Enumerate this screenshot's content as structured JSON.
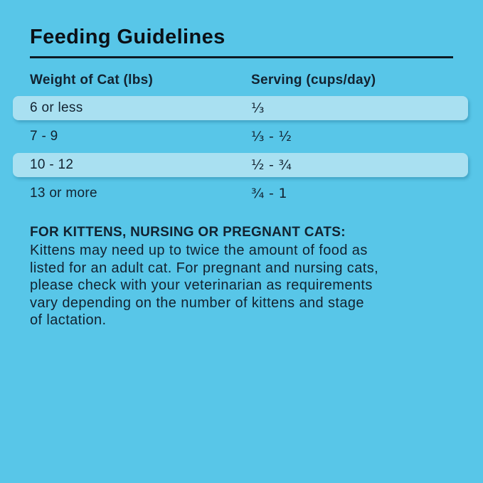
{
  "header": {
    "title": "Feeding Guidelines"
  },
  "table": {
    "headers": [
      "Weight of Cat (lbs)",
      "Serving (cups/day)"
    ],
    "rows": [
      {
        "weight": "6 or less",
        "serving": "⅓",
        "highlighted": true
      },
      {
        "weight": "7 - 9",
        "serving": "⅓ - ½",
        "highlighted": false
      },
      {
        "weight": "10 - 12",
        "serving": "½ - ¾",
        "highlighted": true
      },
      {
        "weight": "13 or more",
        "serving": "¾ - 1",
        "highlighted": false
      }
    ]
  },
  "note": {
    "heading": "FOR KITTENS, NURSING OR PREGNANT CATS:",
    "lines": [
      "Kittens may need up to twice the amount of food as",
      "listed for an adult cat. For pregnant and nursing cats,",
      "please check with your veterinarian as requirements",
      "vary depending on the number of kittens and stage",
      "of lactation."
    ]
  },
  "colors": {
    "background": "#58C6E8",
    "row_highlight": "#A9E0F1",
    "text": "#122230",
    "rule": "#0D1B24"
  }
}
